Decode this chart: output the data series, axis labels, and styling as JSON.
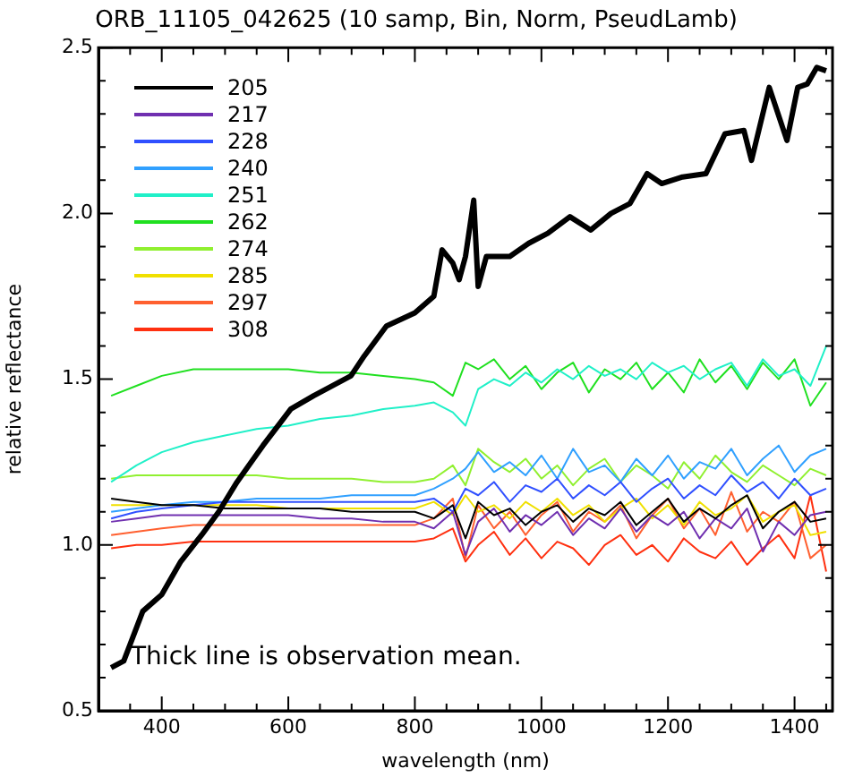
{
  "chart_data": {
    "type": "line",
    "title": "ORB_11105_042625 (10 samp, Bin, Norm, PseudLamb)",
    "xlabel": "wavelength (nm)",
    "ylabel": "relative reflectance",
    "annotations": [
      "Thick line is observation mean."
    ],
    "xlim": [
      300,
      1460
    ],
    "ylim": [
      0.5,
      2.5
    ],
    "xticks": [
      {
        "value": 350,
        "label": null
      },
      400,
      {
        "value": 450,
        "label": null
      },
      {
        "value": 500,
        "label": null
      },
      {
        "value": 550,
        "label": null
      },
      600,
      {
        "value": 650,
        "label": null
      },
      {
        "value": 700,
        "label": null
      },
      {
        "value": 750,
        "label": null
      },
      800,
      {
        "value": 850,
        "label": null
      },
      {
        "value": 900,
        "label": null
      },
      {
        "value": 950,
        "label": null
      },
      1000,
      {
        "value": 1050,
        "label": null
      },
      {
        "value": 1100,
        "label": null
      },
      {
        "value": 1150,
        "label": null
      },
      1200,
      {
        "value": 1250,
        "label": null
      },
      {
        "value": 1300,
        "label": null
      },
      {
        "value": 1350,
        "label": null
      },
      1400,
      {
        "value": 1450,
        "label": null
      }
    ],
    "yticks": [
      0.5,
      {
        "value": 0.6,
        "label": null
      },
      {
        "value": 0.7,
        "label": null
      },
      {
        "value": 0.8,
        "label": null
      },
      {
        "value": 0.9,
        "label": null
      },
      {
        "value": 1,
        "label": "1.0"
      },
      {
        "value": 1.1,
        "label": null
      },
      {
        "value": 1.2,
        "label": null
      },
      {
        "value": 1.3,
        "label": null
      },
      {
        "value": 1.4,
        "label": null
      },
      1.5,
      {
        "value": 1.6,
        "label": null
      },
      {
        "value": 1.7,
        "label": null
      },
      {
        "value": 1.8,
        "label": null
      },
      {
        "value": 1.9,
        "label": null
      },
      {
        "value": 2,
        "label": "2.0"
      },
      {
        "value": 2.1,
        "label": null
      },
      {
        "value": 2.2,
        "label": null
      },
      {
        "value": 2.3,
        "label": null
      },
      {
        "value": 2.4,
        "label": null
      },
      2.5
    ],
    "grid": false,
    "legend": "top left",
    "marker": "none",
    "line_style": "solid",
    "x": [
      320,
      360,
      400,
      450,
      500,
      550,
      600,
      650,
      700,
      750,
      800,
      830,
      860,
      880,
      900,
      925,
      950,
      975,
      1000,
      1025,
      1050,
      1075,
      1100,
      1125,
      1150,
      1175,
      1200,
      1225,
      1250,
      1275,
      1300,
      1325,
      1350,
      1375,
      1400,
      1425,
      1450
    ],
    "series": [
      {
        "color": "#000000",
        "x": [
          320,
          340,
          370,
          400,
          430,
          463,
          490,
          519,
          560,
          604,
          640,
          699,
          720,
          755,
          800,
          830,
          843,
          860,
          870,
          880,
          893,
          900,
          913,
          950,
          980,
          1010,
          1045,
          1078,
          1110,
          1140,
          1167,
          1190,
          1223,
          1260,
          1290,
          1320,
          1332,
          1360,
          1388,
          1405,
          1420,
          1435,
          1450
        ],
        "values": [
          0.63,
          0.65,
          0.8,
          0.85,
          0.95,
          1.03,
          1.1,
          1.19,
          1.3,
          1.41,
          1.45,
          1.51,
          1.57,
          1.66,
          1.7,
          1.75,
          1.89,
          1.85,
          1.8,
          1.87,
          2.04,
          1.78,
          1.87,
          1.87,
          1.91,
          1.94,
          1.99,
          1.95,
          2.0,
          2.03,
          2.12,
          2.09,
          2.11,
          2.12,
          2.24,
          2.25,
          2.16,
          2.38,
          2.22,
          2.38,
          2.39,
          2.44,
          2.43
        ]
      },
      {
        "name": "205",
        "color": "#000000",
        "values": [
          1.14,
          1.13,
          1.12,
          1.12,
          1.11,
          1.11,
          1.11,
          1.11,
          1.1,
          1.1,
          1.1,
          1.08,
          1.12,
          1.02,
          1.13,
          1.09,
          1.11,
          1.06,
          1.1,
          1.12,
          1.07,
          1.11,
          1.09,
          1.13,
          1.06,
          1.1,
          1.14,
          1.07,
          1.11,
          1.08,
          1.12,
          1.15,
          1.05,
          1.1,
          1.13,
          1.07,
          1.08
        ]
      },
      {
        "name": "217",
        "color": "#7030b0",
        "values": [
          1.07,
          1.08,
          1.09,
          1.09,
          1.09,
          1.09,
          1.09,
          1.08,
          1.08,
          1.07,
          1.07,
          1.05,
          1.1,
          0.97,
          1.07,
          1.11,
          1.04,
          1.09,
          1.06,
          1.1,
          1.03,
          1.08,
          1.05,
          1.11,
          1.04,
          1.09,
          1.06,
          1.1,
          1.02,
          1.08,
          1.05,
          1.11,
          0.98,
          1.07,
          1.03,
          1.09,
          1.1
        ]
      },
      {
        "name": "228",
        "color": "#3050ff",
        "values": [
          1.08,
          1.1,
          1.11,
          1.12,
          1.13,
          1.13,
          1.13,
          1.13,
          1.13,
          1.13,
          1.13,
          1.14,
          1.1,
          1.17,
          1.15,
          1.19,
          1.13,
          1.18,
          1.16,
          1.2,
          1.14,
          1.18,
          1.15,
          1.19,
          1.13,
          1.17,
          1.2,
          1.14,
          1.18,
          1.15,
          1.21,
          1.16,
          1.19,
          1.14,
          1.2,
          1.15,
          1.17
        ]
      },
      {
        "name": "240",
        "color": "#30a0ff",
        "values": [
          1.1,
          1.11,
          1.12,
          1.13,
          1.13,
          1.14,
          1.14,
          1.14,
          1.15,
          1.15,
          1.15,
          1.17,
          1.2,
          1.23,
          1.28,
          1.22,
          1.25,
          1.21,
          1.27,
          1.2,
          1.29,
          1.22,
          1.24,
          1.19,
          1.26,
          1.21,
          1.27,
          1.2,
          1.25,
          1.23,
          1.29,
          1.21,
          1.26,
          1.3,
          1.22,
          1.27,
          1.29
        ]
      },
      {
        "name": "251",
        "color": "#20f0c8",
        "values": [
          1.19,
          1.24,
          1.28,
          1.31,
          1.33,
          1.35,
          1.36,
          1.38,
          1.39,
          1.41,
          1.42,
          1.43,
          1.4,
          1.36,
          1.47,
          1.5,
          1.48,
          1.52,
          1.49,
          1.53,
          1.5,
          1.54,
          1.51,
          1.53,
          1.5,
          1.55,
          1.52,
          1.54,
          1.5,
          1.53,
          1.55,
          1.48,
          1.56,
          1.51,
          1.53,
          1.48,
          1.6
        ]
      },
      {
        "name": "262",
        "color": "#20e020",
        "values": [
          1.45,
          1.48,
          1.51,
          1.53,
          1.53,
          1.53,
          1.53,
          1.52,
          1.52,
          1.51,
          1.5,
          1.49,
          1.45,
          1.55,
          1.53,
          1.56,
          1.5,
          1.54,
          1.47,
          1.52,
          1.55,
          1.46,
          1.53,
          1.5,
          1.55,
          1.47,
          1.52,
          1.46,
          1.56,
          1.49,
          1.54,
          1.47,
          1.55,
          1.5,
          1.56,
          1.42,
          1.49
        ]
      },
      {
        "name": "274",
        "color": "#90f030",
        "values": [
          1.2,
          1.21,
          1.21,
          1.21,
          1.21,
          1.21,
          1.2,
          1.2,
          1.2,
          1.19,
          1.19,
          1.2,
          1.24,
          1.18,
          1.29,
          1.25,
          1.22,
          1.26,
          1.2,
          1.24,
          1.18,
          1.23,
          1.26,
          1.19,
          1.24,
          1.21,
          1.17,
          1.25,
          1.2,
          1.27,
          1.22,
          1.19,
          1.24,
          1.21,
          1.18,
          1.23,
          1.21
        ]
      },
      {
        "name": "285",
        "color": "#f0e000",
        "values": [
          1.12,
          1.12,
          1.12,
          1.12,
          1.12,
          1.12,
          1.11,
          1.11,
          1.11,
          1.11,
          1.11,
          1.13,
          1.09,
          1.15,
          1.1,
          1.12,
          1.08,
          1.13,
          1.1,
          1.14,
          1.09,
          1.12,
          1.07,
          1.11,
          1.14,
          1.08,
          1.12,
          1.06,
          1.13,
          1.09,
          1.11,
          1.15,
          1.07,
          1.1,
          1.12,
          1.03,
          1.04
        ]
      },
      {
        "name": "297",
        "color": "#ff6030",
        "values": [
          1.03,
          1.04,
          1.05,
          1.06,
          1.06,
          1.06,
          1.06,
          1.06,
          1.06,
          1.06,
          1.06,
          1.08,
          1.14,
          0.96,
          1.12,
          1.05,
          1.1,
          1.03,
          1.09,
          1.13,
          1.04,
          1.1,
          1.07,
          1.12,
          1.02,
          1.09,
          1.14,
          1.05,
          1.11,
          1.03,
          1.16,
          1.04,
          1.1,
          1.07,
          1.13,
          0.96,
          1.0
        ]
      },
      {
        "name": "308",
        "color": "#ff3010",
        "values": [
          0.99,
          1.0,
          1.0,
          1.01,
          1.01,
          1.01,
          1.01,
          1.01,
          1.01,
          1.01,
          1.01,
          1.02,
          1.05,
          0.95,
          1.0,
          1.04,
          0.97,
          1.02,
          0.96,
          1.01,
          0.99,
          0.94,
          1.0,
          1.03,
          0.97,
          1.0,
          0.95,
          1.02,
          0.98,
          0.96,
          1.01,
          0.94,
          0.99,
          1.03,
          0.96,
          1.15,
          0.92
        ]
      }
    ]
  }
}
